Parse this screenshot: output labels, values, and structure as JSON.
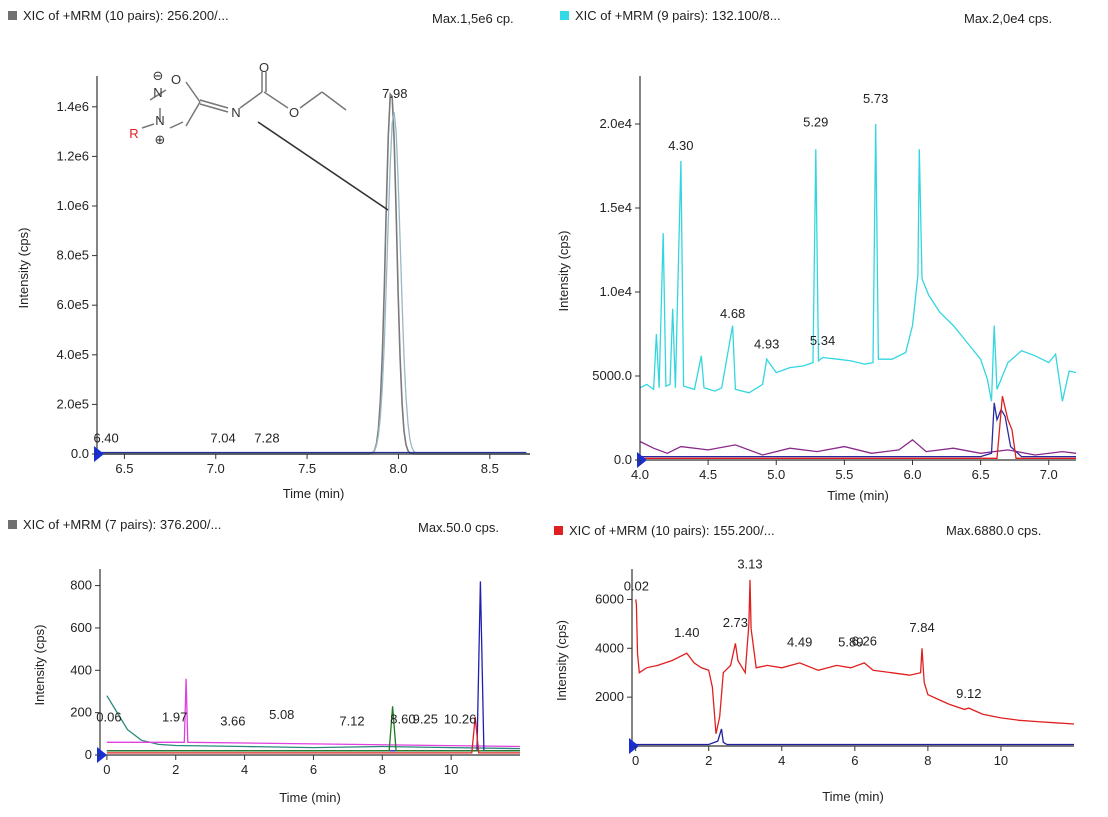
{
  "chart_data": [
    {
      "type": "line",
      "header": {
        "title": "XIC of +MRM (10 pairs): 256.200/...",
        "max": "Max.1,5e6 cp.",
        "marker_color": "#707070"
      },
      "xlabel": "Time (min)",
      "ylabel": "Intensity (cps)",
      "xlim": [
        6.35,
        8.72
      ],
      "ylim": [
        0,
        1500000
      ],
      "xticks": [
        6.5,
        7.0,
        7.5,
        8.0,
        8.5
      ],
      "xtick_labels": [
        "6.5",
        "7.0",
        "7.5",
        "8.0",
        "8.5"
      ],
      "yticks": [
        0,
        200000,
        400000,
        600000,
        800000,
        1000000,
        1200000,
        1400000
      ],
      "ytick_labels": [
        "0.0",
        "2.0e5",
        "4.0e5",
        "6.0e5",
        "8.0e5",
        "1.0e6",
        "1.2e6",
        "1.4e6"
      ],
      "peak_labels": [
        {
          "text": "7.98",
          "x": 7.98,
          "y": 1420000
        },
        {
          "text": "6.40",
          "x": 6.4,
          "y": 30000
        },
        {
          "text": "7.04",
          "x": 7.04,
          "y": 30000
        },
        {
          "text": "7.28",
          "x": 7.28,
          "y": 30000
        }
      ],
      "series": [
        {
          "color": "#7a7a7a",
          "peak": {
            "x": 7.96,
            "height": 1470000,
            "width": 0.03
          }
        },
        {
          "color": "#99b8c2",
          "peak": {
            "x": 7.975,
            "height": 1380000,
            "width": 0.035
          }
        },
        {
          "color": "#2030a0",
          "baseline": [
            6.36,
            8.7,
            6000
          ]
        }
      ],
      "structure": {
        "labels": [
          "O",
          "N",
          "N",
          "R",
          "N",
          "O",
          "O"
        ],
        "charges": [
          "⊖",
          "⊕"
        ]
      }
    },
    {
      "type": "line",
      "header": {
        "title": "XIC of +MRM (9 pairs): 132.100/8...",
        "max": "Max.2,0e4 cps.",
        "marker_color": "#33d9e6"
      },
      "xlabel": "Time (min)",
      "ylabel": "Intensity (cps)",
      "xlim": [
        4.0,
        7.2
      ],
      "ylim": [
        0,
        22500
      ],
      "xticks": [
        4.0,
        4.5,
        5.0,
        5.5,
        6.0,
        6.5,
        7.0
      ],
      "xtick_labels": [
        "4.0",
        "4.5",
        "5.0",
        "5.5",
        "6.0",
        "6.5",
        "7.0"
      ],
      "yticks": [
        0,
        5000,
        10000,
        15000,
        20000
      ],
      "ytick_labels": [
        "0.0",
        "5000.0",
        "1.0e4",
        "1.5e4",
        "2.0e4"
      ],
      "peak_labels": [
        {
          "text": "4.30",
          "x": 4.3,
          "y": 18200
        },
        {
          "text": "4.68",
          "x": 4.68,
          "y": 8200
        },
        {
          "text": "4.93",
          "x": 4.93,
          "y": 6400
        },
        {
          "text": "5.29",
          "x": 5.29,
          "y": 19600
        },
        {
          "text": "5.34",
          "x": 5.34,
          "y": 6600
        },
        {
          "text": "5.73",
          "x": 5.73,
          "y": 21000
        }
      ],
      "series": [
        {
          "color": "#33d6e0",
          "points": [
            [
              4.0,
              4300
            ],
            [
              4.05,
              4500
            ],
            [
              4.1,
              4200
            ],
            [
              4.12,
              7500
            ],
            [
              4.14,
              4300
            ],
            [
              4.17,
              13500
            ],
            [
              4.19,
              4400
            ],
            [
              4.22,
              4500
            ],
            [
              4.24,
              9000
            ],
            [
              4.26,
              4300
            ],
            [
              4.3,
              17800
            ],
            [
              4.32,
              4400
            ],
            [
              4.4,
              4200
            ],
            [
              4.45,
              6200
            ],
            [
              4.47,
              4300
            ],
            [
              4.55,
              4100
            ],
            [
              4.6,
              4300
            ],
            [
              4.68,
              8000
            ],
            [
              4.7,
              4200
            ],
            [
              4.8,
              4000
            ],
            [
              4.9,
              4500
            ],
            [
              4.93,
              6000
            ],
            [
              5.0,
              5200
            ],
            [
              5.1,
              5500
            ],
            [
              5.2,
              5600
            ],
            [
              5.27,
              5800
            ],
            [
              5.29,
              18500
            ],
            [
              5.31,
              5900
            ],
            [
              5.34,
              6100
            ],
            [
              5.45,
              6000
            ],
            [
              5.55,
              5900
            ],
            [
              5.65,
              5700
            ],
            [
              5.71,
              5800
            ],
            [
              5.73,
              20000
            ],
            [
              5.75,
              6000
            ],
            [
              5.85,
              6000
            ],
            [
              5.95,
              6400
            ],
            [
              6.0,
              8000
            ],
            [
              6.04,
              11000
            ],
            [
              6.05,
              18500
            ],
            [
              6.07,
              10800
            ],
            [
              6.12,
              9800
            ],
            [
              6.2,
              8800
            ],
            [
              6.3,
              8000
            ],
            [
              6.4,
              7000
            ],
            [
              6.5,
              6000
            ],
            [
              6.55,
              4800
            ],
            [
              6.58,
              3500
            ],
            [
              6.6,
              8000
            ],
            [
              6.62,
              4200
            ],
            [
              6.7,
              5800
            ],
            [
              6.8,
              6500
            ],
            [
              6.9,
              6200
            ],
            [
              7.0,
              5800
            ],
            [
              7.05,
              6300
            ],
            [
              7.1,
              3500
            ],
            [
              7.15,
              5300
            ],
            [
              7.2,
              5200
            ]
          ]
        },
        {
          "color": "#8a2a8a",
          "points": [
            [
              4.0,
              1100
            ],
            [
              4.1,
              700
            ],
            [
              4.2,
              400
            ],
            [
              4.3,
              800
            ],
            [
              4.5,
              600
            ],
            [
              4.7,
              900
            ],
            [
              4.9,
              300
            ],
            [
              5.1,
              700
            ],
            [
              5.3,
              500
            ],
            [
              5.5,
              800
            ],
            [
              5.7,
              400
            ],
            [
              5.9,
              600
            ],
            [
              6.0,
              1200
            ],
            [
              6.1,
              500
            ],
            [
              6.3,
              700
            ],
            [
              6.5,
              400
            ],
            [
              6.7,
              600
            ],
            [
              6.9,
              300
            ],
            [
              7.1,
              500
            ],
            [
              7.2,
              400
            ]
          ]
        },
        {
          "color": "#2a2aa0",
          "points": [
            [
              4.0,
              200
            ],
            [
              6.5,
              200
            ],
            [
              6.58,
              400
            ],
            [
              6.6,
              3400
            ],
            [
              6.62,
              2400
            ],
            [
              6.65,
              3000
            ],
            [
              6.68,
              2600
            ],
            [
              6.72,
              800
            ],
            [
              6.8,
              200
            ],
            [
              7.2,
              200
            ]
          ]
        },
        {
          "color": "#e02020",
          "points": [
            [
              4.0,
              100
            ],
            [
              6.62,
              100
            ],
            [
              6.66,
              3800
            ],
            [
              6.7,
              2400
            ],
            [
              6.73,
              1800
            ],
            [
              6.76,
              100
            ],
            [
              7.2,
              100
            ]
          ]
        }
      ]
    },
    {
      "type": "line",
      "header": {
        "title": "XIC of +MRM (7 pairs): 376.200/...",
        "max": "Max.50.0 cps.",
        "marker_color": "#707070"
      },
      "xlabel": "Time (min)",
      "ylabel": "Intensity (cps)",
      "xlim": [
        -0.2,
        12.0
      ],
      "ylim": [
        0,
        850
      ],
      "xticks": [
        0,
        2,
        4,
        6,
        8,
        10
      ],
      "xtick_labels": [
        "0",
        "2",
        "4",
        "6",
        "8",
        "10"
      ],
      "yticks": [
        0,
        200,
        400,
        600,
        800
      ],
      "ytick_labels": [
        "0",
        "200",
        "400",
        "600",
        "800"
      ],
      "peak_labels": [
        {
          "text": "0.06",
          "x": 0.06,
          "y": 140
        },
        {
          "text": "1.97",
          "x": 1.97,
          "y": 140
        },
        {
          "text": "3.66",
          "x": 3.66,
          "y": 120
        },
        {
          "text": "5.08",
          "x": 5.08,
          "y": 150
        },
        {
          "text": "7.12",
          "x": 7.12,
          "y": 120
        },
        {
          "text": "8.60",
          "x": 8.6,
          "y": 130
        },
        {
          "text": "9.25",
          "x": 9.25,
          "y": 130
        },
        {
          "text": "10.26",
          "x": 10.26,
          "y": 130
        }
      ],
      "series": [
        {
          "color": "#2a8a7a",
          "points": [
            [
              0,
              280
            ],
            [
              0.3,
              200
            ],
            [
              0.6,
              120
            ],
            [
              1.0,
              70
            ],
            [
              1.5,
              50
            ],
            [
              2.0,
              45
            ],
            [
              4.0,
              40
            ],
            [
              6.0,
              35
            ],
            [
              8.0,
              40
            ],
            [
              10.0,
              35
            ],
            [
              12.0,
              30
            ]
          ]
        },
        {
          "color": "#e040e0",
          "points": [
            [
              0,
              60
            ],
            [
              2.25,
              60
            ],
            [
              2.3,
              360
            ],
            [
              2.35,
              60
            ],
            [
              12.0,
              40
            ]
          ]
        },
        {
          "color": "#2020b0",
          "points": [
            [
              0,
              20
            ],
            [
              10.75,
              20
            ],
            [
              10.85,
              820
            ],
            [
              10.95,
              20
            ],
            [
              12.0,
              20
            ]
          ]
        },
        {
          "color": "#207a20",
          "points": [
            [
              0,
              20
            ],
            [
              8.2,
              20
            ],
            [
              8.3,
              230
            ],
            [
              8.4,
              20
            ],
            [
              12.0,
              20
            ]
          ]
        },
        {
          "color": "#e02020",
          "points": [
            [
              0,
              10
            ],
            [
              10.6,
              10
            ],
            [
              10.7,
              180
            ],
            [
              10.8,
              10
            ],
            [
              12.0,
              10
            ]
          ]
        }
      ]
    },
    {
      "type": "line",
      "header": {
        "title": "XIC of +MRM (10 pairs): 155.200/...",
        "max": "Max.6880.0 cps.",
        "marker_color": "#e02020"
      },
      "xlabel": "Time (min)",
      "ylabel": "Intensity (cps)",
      "xlim": [
        -0.1,
        12.0
      ],
      "ylim": [
        0,
        7000
      ],
      "xticks": [
        0,
        2,
        4,
        6,
        8,
        10
      ],
      "xtick_labels": [
        "0",
        "2",
        "4",
        "6",
        "8",
        "10"
      ],
      "yticks": [
        2000,
        4000,
        6000
      ],
      "ytick_labels": [
        "2000",
        "4000",
        "6000"
      ],
      "peak_labels": [
        {
          "text": "0.02",
          "x": 0.02,
          "y": 6200
        },
        {
          "text": "1.40",
          "x": 1.4,
          "y": 4300
        },
        {
          "text": "2.73",
          "x": 2.73,
          "y": 4700
        },
        {
          "text": "3.13",
          "x": 3.13,
          "y": 7100
        },
        {
          "text": "4.49",
          "x": 4.49,
          "y": 3900
        },
        {
          "text": "5.89",
          "x": 5.89,
          "y": 3900
        },
        {
          "text": "6.26",
          "x": 6.26,
          "y": 3950
        },
        {
          "text": "7.84",
          "x": 7.84,
          "y": 4500
        },
        {
          "text": "9.12",
          "x": 9.12,
          "y": 1800
        }
      ],
      "series": [
        {
          "color": "#e02020",
          "points": [
            [
              0.0,
              6000
            ],
            [
              0.02,
              5800
            ],
            [
              0.05,
              3800
            ],
            [
              0.1,
              3000
            ],
            [
              0.3,
              3200
            ],
            [
              0.6,
              3300
            ],
            [
              1.0,
              3500
            ],
            [
              1.4,
              3800
            ],
            [
              1.6,
              3400
            ],
            [
              1.8,
              3200
            ],
            [
              2.0,
              3100
            ],
            [
              2.1,
              2400
            ],
            [
              2.2,
              500
            ],
            [
              2.3,
              1200
            ],
            [
              2.4,
              3000
            ],
            [
              2.6,
              3300
            ],
            [
              2.73,
              4200
            ],
            [
              2.8,
              3500
            ],
            [
              3.0,
              3000
            ],
            [
              3.1,
              5000
            ],
            [
              3.13,
              6800
            ],
            [
              3.16,
              4800
            ],
            [
              3.3,
              3200
            ],
            [
              3.6,
              3300
            ],
            [
              4.0,
              3200
            ],
            [
              4.49,
              3400
            ],
            [
              5.0,
              3100
            ],
            [
              5.5,
              3300
            ],
            [
              5.89,
              3200
            ],
            [
              6.26,
              3400
            ],
            [
              6.5,
              3100
            ],
            [
              7.0,
              3000
            ],
            [
              7.5,
              2900
            ],
            [
              7.8,
              3000
            ],
            [
              7.84,
              4000
            ],
            [
              7.9,
              2600
            ],
            [
              8.0,
              2100
            ],
            [
              8.3,
              1900
            ],
            [
              8.6,
              1700
            ],
            [
              9.0,
              1500
            ],
            [
              9.12,
              1550
            ],
            [
              9.5,
              1300
            ],
            [
              10.0,
              1150
            ],
            [
              10.5,
              1050
            ],
            [
              11.0,
              1000
            ],
            [
              11.5,
              950
            ],
            [
              12.0,
              900
            ]
          ]
        },
        {
          "color": "#2020a0",
          "points": [
            [
              0,
              60
            ],
            [
              2.0,
              60
            ],
            [
              2.25,
              200
            ],
            [
              2.35,
              700
            ],
            [
              2.4,
              150
            ],
            [
              2.5,
              60
            ],
            [
              12.0,
              60
            ]
          ]
        }
      ]
    }
  ]
}
